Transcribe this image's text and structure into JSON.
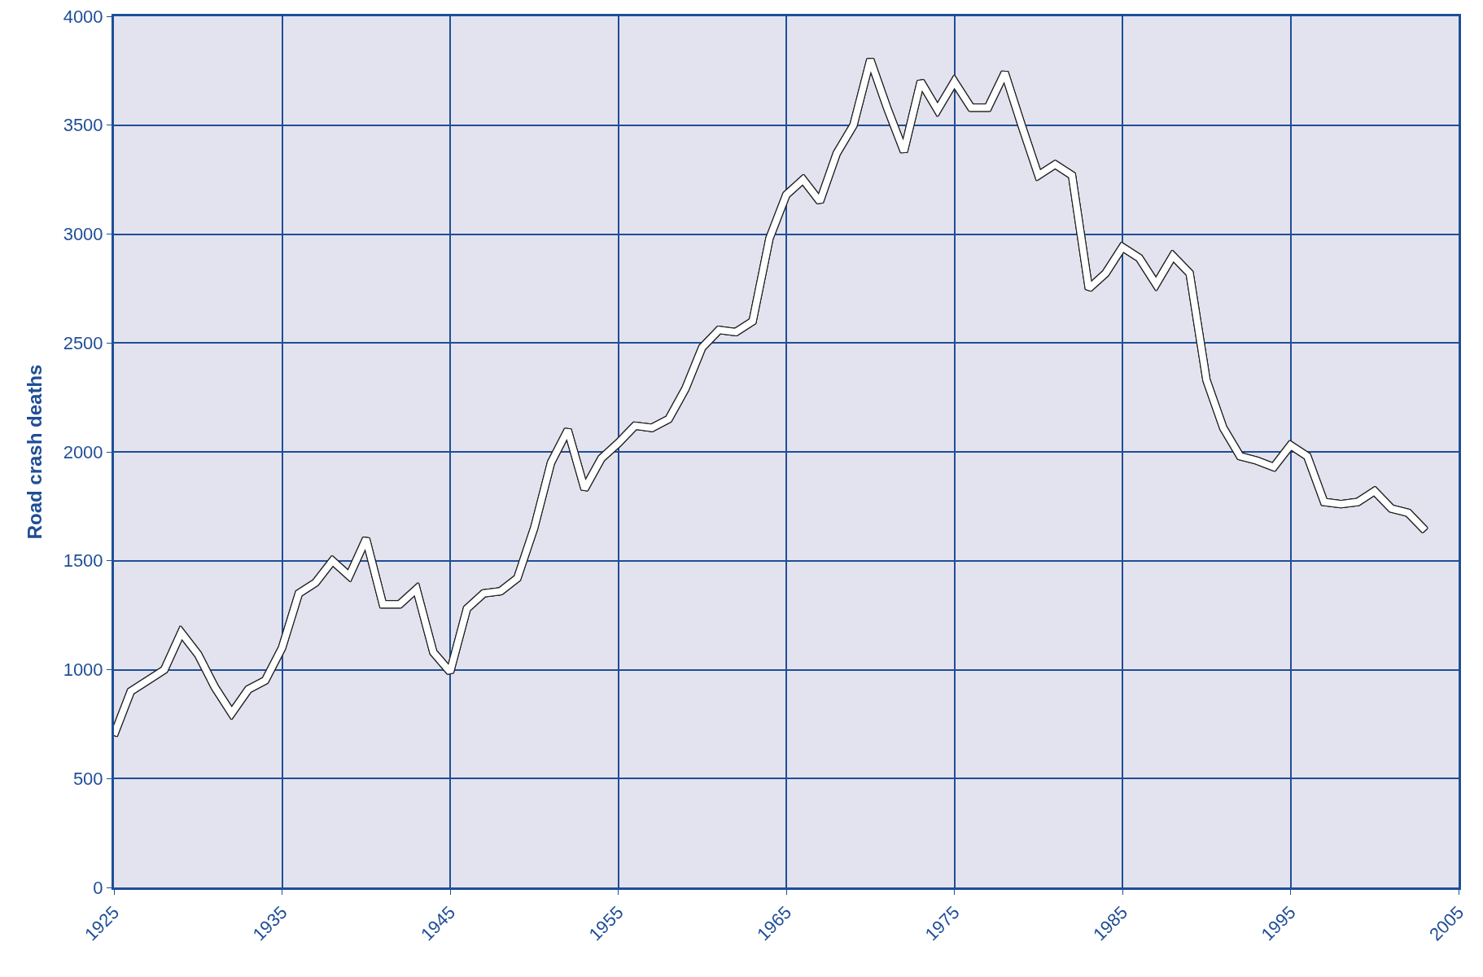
{
  "chart_data": {
    "type": "line",
    "ylabel": "Road crash deaths",
    "x": [
      1925,
      1926,
      1927,
      1928,
      1929,
      1930,
      1931,
      1932,
      1933,
      1934,
      1935,
      1936,
      1937,
      1938,
      1939,
      1940,
      1941,
      1942,
      1943,
      1944,
      1945,
      1946,
      1947,
      1948,
      1949,
      1950,
      1951,
      1952,
      1953,
      1954,
      1955,
      1956,
      1957,
      1958,
      1959,
      1960,
      1961,
      1962,
      1963,
      1964,
      1965,
      1966,
      1967,
      1968,
      1969,
      1970,
      1971,
      1972,
      1973,
      1974,
      1975,
      1976,
      1977,
      1978,
      1979,
      1980,
      1981,
      1982,
      1983,
      1984,
      1985,
      1986,
      1987,
      1988,
      1989,
      1990,
      1991,
      1992,
      1993,
      1994,
      1995,
      1996,
      1997,
      1998,
      1999,
      2000,
      2001,
      2002,
      2003
    ],
    "series": [
      {
        "color": "#ffffff",
        "values": [
          700,
          900,
          950,
          1000,
          1170,
          1070,
          920,
          800,
          910,
          950,
          1100,
          1350,
          1400,
          1500,
          1430,
          1600,
          1300,
          1300,
          1370,
          1080,
          990,
          1280,
          1350,
          1360,
          1420,
          1650,
          1950,
          2100,
          1830,
          1970,
          2040,
          2120,
          2110,
          2150,
          2290,
          2480,
          2560,
          2550,
          2600,
          2980,
          3180,
          3250,
          3150,
          3370,
          3500,
          3800,
          3580,
          3380,
          3700,
          3570,
          3700,
          3580,
          3580,
          3740,
          3500,
          3270,
          3320,
          3270,
          2750,
          2820,
          2940,
          2890,
          2770,
          2900,
          2820,
          2330,
          2110,
          1980,
          1960,
          1930,
          2030,
          1980,
          1770,
          1760,
          1770,
          1820,
          1740,
          1720,
          1640
        ]
      }
    ],
    "xlim": [
      1925,
      2005
    ],
    "xticks": [
      1925,
      1935,
      1945,
      1955,
      1965,
      1975,
      1985,
      1995,
      2005
    ],
    "ylim": [
      0,
      4000
    ],
    "yticks": [
      0,
      500,
      1000,
      1500,
      2000,
      2500,
      3000,
      3500,
      4000
    ],
    "grid": true,
    "marker": "none",
    "line_style": "solid"
  }
}
